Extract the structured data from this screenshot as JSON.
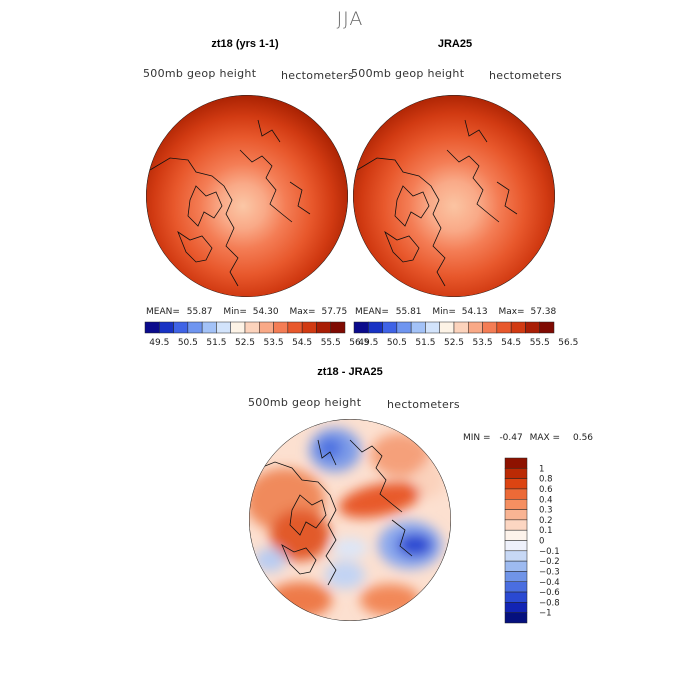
{
  "chart_data": {
    "suptitle": "JJA",
    "panels": [
      {
        "type": "heatmap",
        "title": "zt18 (yrs 1-1)",
        "left_label": "500mb geop height",
        "right_label": "hectometers",
        "projection": "north polar stereographic",
        "stats": {
          "mean_label": "MEAN=",
          "mean": "55.87",
          "min_label": "Min=",
          "min": "54.30",
          "max_label": "Max=",
          "max": "57.75"
        },
        "colorbar_ticks": [
          "49.5",
          "50.5",
          "51.5",
          "52.5",
          "53.5",
          "54.5",
          "55.5",
          "56.5"
        ],
        "colorbar_colors": [
          "#0b0b8c",
          "#1832c4",
          "#3f63e6",
          "#6f95f0",
          "#a3c2f7",
          "#d2e3fb",
          "#fdf3e6",
          "#fcd3bc",
          "#f9a987",
          "#f47d55",
          "#e8582c",
          "#d13a12",
          "#a91e05",
          "#7f0a02"
        ]
      },
      {
        "type": "heatmap",
        "title": "JRA25",
        "left_label": "500mb geop height",
        "right_label": "hectometers",
        "projection": "north polar stereographic",
        "stats": {
          "mean_label": "MEAN=",
          "mean": "55.81",
          "min_label": "Min=",
          "min": "54.13",
          "max_label": "Max=",
          "max": "57.38"
        },
        "colorbar_ticks": [
          "49.5",
          "50.5",
          "51.5",
          "52.5",
          "53.5",
          "54.5",
          "55.5",
          "56.5"
        ],
        "colorbar_colors": [
          "#0b0b8c",
          "#1832c4",
          "#3f63e6",
          "#6f95f0",
          "#a3c2f7",
          "#d2e3fb",
          "#fdf3e6",
          "#fcd3bc",
          "#f9a987",
          "#f47d55",
          "#e8582c",
          "#d13a12",
          "#a91e05",
          "#7f0a02"
        ]
      },
      {
        "type": "heatmap",
        "title": "zt18 - JRA25",
        "left_label": "500mb geop height",
        "right_label": "hectometers",
        "projection": "north polar stereographic",
        "stats": {
          "min_label": "MIN =",
          "min": "-0.47",
          "max_label": "MAX =",
          "max": "0.56"
        },
        "colorbar_ticks": [
          "1",
          "0.8",
          "0.6",
          "0.4",
          "0.3",
          "0.2",
          "0.1",
          "0",
          "−0.1",
          "−0.2",
          "−0.3",
          "−0.4",
          "−0.6",
          "−0.8",
          "−1"
        ],
        "colorbar_colors": [
          "#8e1200",
          "#bb2a04",
          "#dc4412",
          "#ec6a37",
          "#f58f61",
          "#f9b493",
          "#fcd6c2",
          "#fdf3eb",
          "#eef1fb",
          "#c7d8f5",
          "#9dbaf0",
          "#7094e8",
          "#4a6ee0",
          "#2a49d2",
          "#1224b4",
          "#05107e"
        ]
      }
    ]
  }
}
